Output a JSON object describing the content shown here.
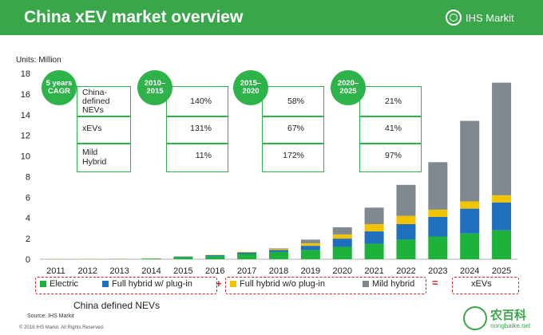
{
  "header": {
    "title": "China xEV market overview",
    "logo_text": "IHS Markit",
    "bg_color": "#3aa64a"
  },
  "units_label": "Units: Million",
  "cagr": {
    "bubbles": [
      "5 years CAGR",
      "2010– 2015",
      "2015– 2020",
      "2020– 2025"
    ],
    "rows": [
      {
        "label": "China- defined NEVs",
        "values": [
          "140%",
          "58%",
          "21%"
        ]
      },
      {
        "label": "xEVs",
        "values": [
          "131%",
          "67%",
          "41%"
        ]
      },
      {
        "label": "Mild Hybrid",
        "values": [
          "11%",
          "172%",
          "97%"
        ]
      }
    ]
  },
  "legend": {
    "items": [
      "Electric",
      "Full hybrid w/ plug-in",
      "Full hybrid w/o plug-in",
      "Mild hybrid"
    ],
    "plus": "+",
    "equals": "=",
    "result": "xEVs",
    "group_label": "China defined NEVs"
  },
  "source": "Source: IHS Markit",
  "copyright": "© 2018 IHS Markit. All Rights Reserved.",
  "watermark": {
    "text": "农百科",
    "url": "nongbaike.net"
  },
  "chart_data": {
    "type": "bar",
    "stacked": true,
    "categories": [
      "2011",
      "2012",
      "2013",
      "2014",
      "2015",
      "2016",
      "2017",
      "2018",
      "2019",
      "2020",
      "2021",
      "2022",
      "2023",
      "2024",
      "2025"
    ],
    "series": [
      {
        "name": "Electric",
        "color": "#1db33a",
        "values": [
          0.01,
          0.02,
          0.02,
          0.05,
          0.2,
          0.3,
          0.5,
          0.7,
          0.9,
          1.2,
          1.5,
          1.9,
          2.2,
          2.5,
          2.8
        ]
      },
      {
        "name": "Full hybrid w/ plug-in",
        "color": "#1f6fbf",
        "values": [
          0.0,
          0.0,
          0.01,
          0.02,
          0.06,
          0.1,
          0.15,
          0.2,
          0.4,
          0.8,
          1.2,
          1.5,
          1.9,
          2.4,
          2.7
        ]
      },
      {
        "name": "Full hybrid w/o plug-in",
        "color": "#f2c400",
        "values": [
          0.01,
          0.01,
          0.01,
          0.02,
          0.02,
          0.03,
          0.06,
          0.1,
          0.25,
          0.4,
          0.7,
          0.8,
          0.7,
          0.7,
          0.7
        ]
      },
      {
        "name": "Mild hybrid",
        "color": "#808890",
        "values": [
          0.0,
          0.0,
          0.0,
          0.0,
          0.0,
          0.0,
          0.0,
          0.05,
          0.35,
          0.7,
          1.6,
          3.0,
          4.6,
          7.8,
          10.9
        ]
      }
    ],
    "ylim": [
      0,
      18
    ],
    "yticks": [
      "0",
      "2",
      "4",
      "6",
      "8",
      "10",
      "12",
      "14",
      "16",
      "18"
    ],
    "grid": false,
    "ylabel": "Units: Million"
  }
}
